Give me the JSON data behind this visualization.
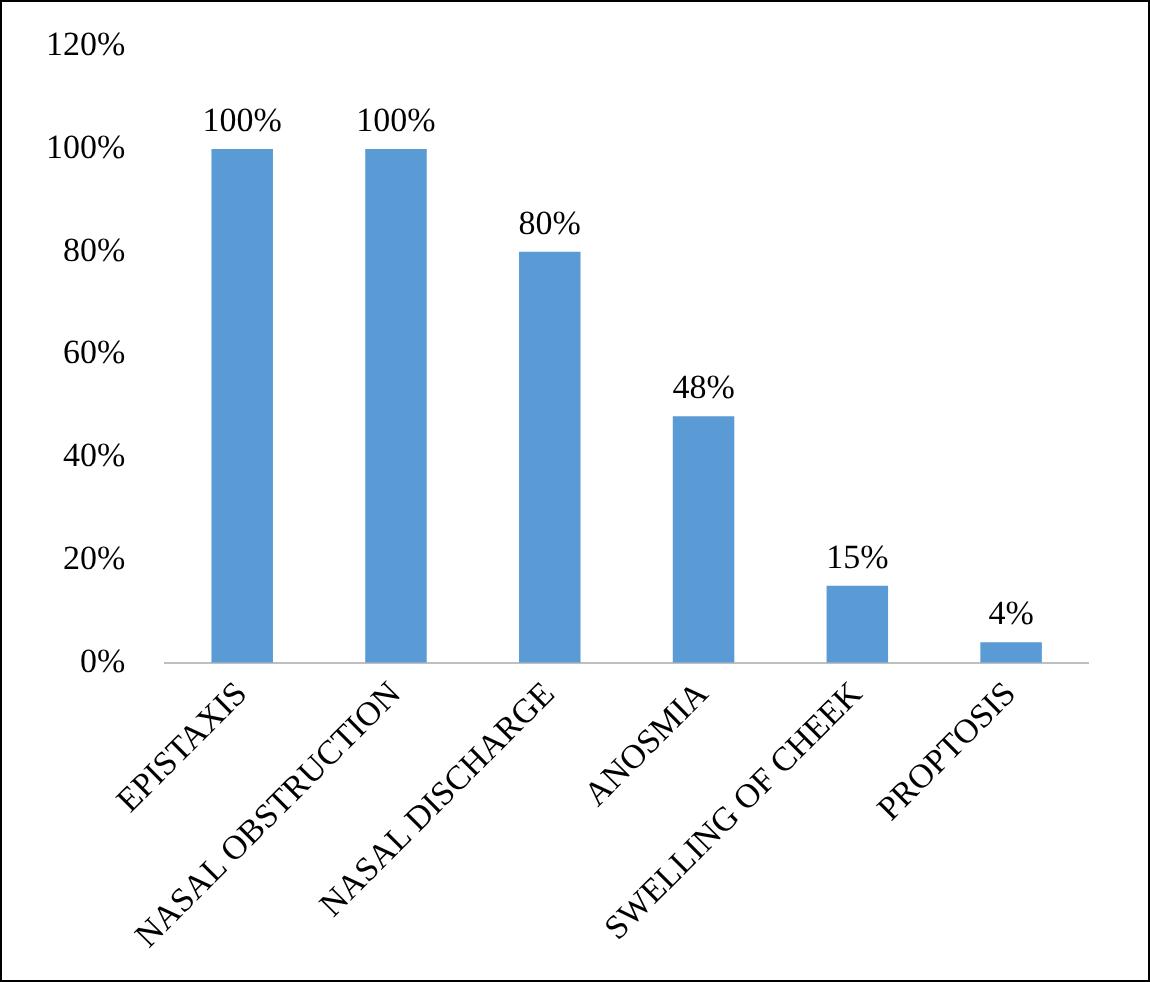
{
  "chart_data": {
    "type": "bar",
    "categories": [
      "EPISTAXIS",
      "NASAL OBSTRUCTION",
      "NASAL DISCHARGE",
      "ANOSMIA",
      "SWELLING OF CHEEK",
      "PROPTOSIS"
    ],
    "values": [
      100,
      100,
      80,
      48,
      15,
      4
    ],
    "value_labels": [
      "100%",
      "100%",
      "80%",
      "48%",
      "15%",
      "4%"
    ],
    "color": "#5b9bd5",
    "ylim": [
      0,
      120
    ],
    "yticks": [
      {
        "value": 0,
        "label": "0%"
      },
      {
        "value": 20,
        "label": "20%"
      },
      {
        "value": 40,
        "label": "40%"
      },
      {
        "value": 60,
        "label": "60%"
      },
      {
        "value": 80,
        "label": "80%"
      },
      {
        "value": 100,
        "label": "100%"
      },
      {
        "value": 120,
        "label": "120%"
      }
    ],
    "grid": false,
    "legend": false
  }
}
